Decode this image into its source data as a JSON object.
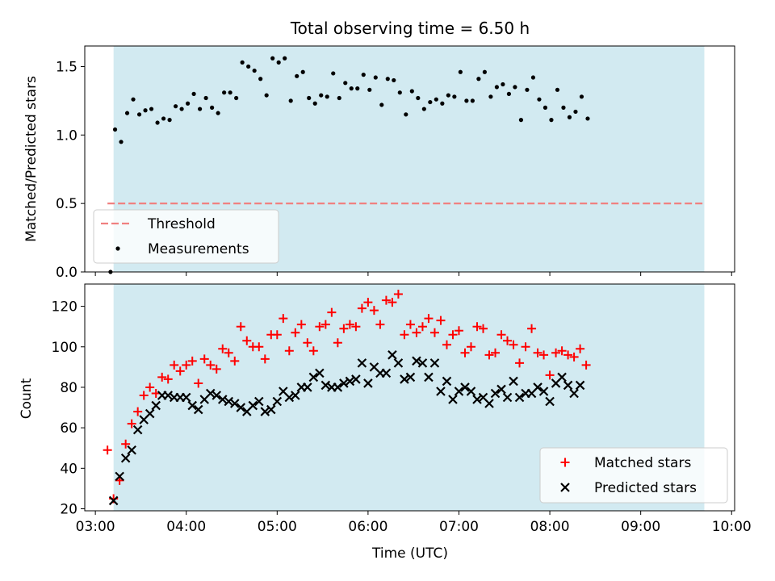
{
  "chart_data": [
    {
      "type": "scatter",
      "title": "Total observing time = 6.50 h",
      "xlabel": "",
      "ylabel": "Matched/Predicted stars",
      "xlim": [
        "02:53",
        "10:02"
      ],
      "ylim": [
        0,
        1.65
      ],
      "yticks": [
        "0.0",
        "0.5",
        "1.0",
        "1.5"
      ],
      "grid": false,
      "legend_position": "lower-left",
      "shaded_interval": [
        "03:12",
        "09:42"
      ],
      "colors": {
        "shade": "#add8e6",
        "measurements": "#000000",
        "threshold": "#f08080"
      },
      "threshold": {
        "name": "Threshold",
        "value": 0.5,
        "x_range": [
          "03:08",
          "09:42"
        ]
      },
      "series": [
        {
          "name": "Measurements",
          "points": [
            [
              "03:10",
              0.0
            ],
            [
              "03:13",
              1.04
            ],
            [
              "03:17",
              0.95
            ],
            [
              "03:21",
              1.16
            ],
            [
              "03:25",
              1.26
            ],
            [
              "03:29",
              1.15
            ],
            [
              "03:33",
              1.18
            ],
            [
              "03:37",
              1.19
            ],
            [
              "03:41",
              1.09
            ],
            [
              "03:45",
              1.12
            ],
            [
              "03:49",
              1.11
            ],
            [
              "03:53",
              1.21
            ],
            [
              "03:57",
              1.19
            ],
            [
              "04:01",
              1.23
            ],
            [
              "04:05",
              1.3
            ],
            [
              "04:09",
              1.19
            ],
            [
              "04:13",
              1.27
            ],
            [
              "04:17",
              1.2
            ],
            [
              "04:21",
              1.16
            ],
            [
              "04:25",
              1.31
            ],
            [
              "04:29",
              1.31
            ],
            [
              "04:33",
              1.27
            ],
            [
              "04:37",
              1.53
            ],
            [
              "04:41",
              1.5
            ],
            [
              "04:45",
              1.47
            ],
            [
              "04:49",
              1.41
            ],
            [
              "04:53",
              1.29
            ],
            [
              "04:57",
              1.56
            ],
            [
              "05:01",
              1.53
            ],
            [
              "05:05",
              1.56
            ],
            [
              "05:09",
              1.25
            ],
            [
              "05:13",
              1.43
            ],
            [
              "05:17",
              1.46
            ],
            [
              "05:21",
              1.27
            ],
            [
              "05:25",
              1.23
            ],
            [
              "05:29",
              1.29
            ],
            [
              "05:33",
              1.28
            ],
            [
              "05:37",
              1.45
            ],
            [
              "05:41",
              1.27
            ],
            [
              "05:45",
              1.38
            ],
            [
              "05:49",
              1.34
            ],
            [
              "05:53",
              1.34
            ],
            [
              "05:57",
              1.44
            ],
            [
              "06:01",
              1.33
            ],
            [
              "06:05",
              1.42
            ],
            [
              "06:09",
              1.22
            ],
            [
              "06:13",
              1.41
            ],
            [
              "06:17",
              1.4
            ],
            [
              "06:21",
              1.31
            ],
            [
              "06:25",
              1.15
            ],
            [
              "06:29",
              1.32
            ],
            [
              "06:33",
              1.27
            ],
            [
              "06:37",
              1.19
            ],
            [
              "06:41",
              1.24
            ],
            [
              "06:45",
              1.26
            ],
            [
              "06:49",
              1.23
            ],
            [
              "06:53",
              1.29
            ],
            [
              "06:57",
              1.28
            ],
            [
              "07:01",
              1.46
            ],
            [
              "07:05",
              1.25
            ],
            [
              "07:09",
              1.25
            ],
            [
              "07:13",
              1.41
            ],
            [
              "07:17",
              1.46
            ],
            [
              "07:21",
              1.28
            ],
            [
              "07:25",
              1.35
            ],
            [
              "07:29",
              1.37
            ],
            [
              "07:33",
              1.3
            ],
            [
              "07:37",
              1.35
            ],
            [
              "07:41",
              1.11
            ],
            [
              "07:45",
              1.33
            ],
            [
              "07:49",
              1.42
            ],
            [
              "07:53",
              1.26
            ],
            [
              "07:57",
              1.2
            ],
            [
              "08:01",
              1.11
            ],
            [
              "08:05",
              1.33
            ],
            [
              "08:09",
              1.2
            ],
            [
              "08:13",
              1.13
            ],
            [
              "08:17",
              1.17
            ],
            [
              "08:21",
              1.28
            ],
            [
              "08:25",
              1.12
            ]
          ]
        }
      ]
    },
    {
      "type": "scatter",
      "title": "",
      "xlabel": "Time (UTC)",
      "ylabel": "Count",
      "xlim": [
        "02:53",
        "10:02"
      ],
      "ylim": [
        19,
        131
      ],
      "xticks": [
        "03:00",
        "04:00",
        "05:00",
        "06:00",
        "07:00",
        "08:00",
        "09:00",
        "10:00"
      ],
      "yticks": [
        "20",
        "40",
        "60",
        "80",
        "100",
        "120"
      ],
      "grid": false,
      "legend_position": "lower-right",
      "shaded_interval": [
        "03:12",
        "09:42"
      ],
      "colors": {
        "shade": "#add8e6",
        "matched": "#ff0000",
        "predicted": "#000000"
      },
      "series": [
        {
          "name": "Matched stars",
          "marker": "plus",
          "points": [
            [
              "03:08",
              49
            ],
            [
              "03:12",
              25
            ],
            [
              "03:16",
              34
            ],
            [
              "03:20",
              52
            ],
            [
              "03:24",
              62
            ],
            [
              "03:28",
              68
            ],
            [
              "03:32",
              76
            ],
            [
              "03:36",
              80
            ],
            [
              "03:40",
              77
            ],
            [
              "03:44",
              85
            ],
            [
              "03:48",
              84
            ],
            [
              "03:52",
              91
            ],
            [
              "03:56",
              88
            ],
            [
              "04:00",
              91
            ],
            [
              "04:04",
              93
            ],
            [
              "04:08",
              82
            ],
            [
              "04:12",
              94
            ],
            [
              "04:16",
              91
            ],
            [
              "04:20",
              89
            ],
            [
              "04:24",
              99
            ],
            [
              "04:28",
              97
            ],
            [
              "04:32",
              93
            ],
            [
              "04:36",
              110
            ],
            [
              "04:40",
              103
            ],
            [
              "04:44",
              100
            ],
            [
              "04:48",
              100
            ],
            [
              "04:52",
              94
            ],
            [
              "04:56",
              106
            ],
            [
              "05:00",
              106
            ],
            [
              "05:04",
              114
            ],
            [
              "05:08",
              98
            ],
            [
              "05:12",
              107
            ],
            [
              "05:16",
              111
            ],
            [
              "05:20",
              102
            ],
            [
              "05:24",
              98
            ],
            [
              "05:28",
              110
            ],
            [
              "05:32",
              111
            ],
            [
              "05:36",
              117
            ],
            [
              "05:40",
              102
            ],
            [
              "05:44",
              109
            ],
            [
              "05:48",
              111
            ],
            [
              "05:52",
              110
            ],
            [
              "05:56",
              119
            ],
            [
              "06:00",
              122
            ],
            [
              "06:04",
              118
            ],
            [
              "06:08",
              111
            ],
            [
              "06:12",
              123
            ],
            [
              "06:16",
              122
            ],
            [
              "06:20",
              126
            ],
            [
              "06:24",
              106
            ],
            [
              "06:28",
              111
            ],
            [
              "06:32",
              107
            ],
            [
              "06:36",
              110
            ],
            [
              "06:40",
              114
            ],
            [
              "06:44",
              107
            ],
            [
              "06:48",
              113
            ],
            [
              "06:52",
              101
            ],
            [
              "06:56",
              106
            ],
            [
              "07:00",
              108
            ],
            [
              "07:04",
              97
            ],
            [
              "07:08",
              100
            ],
            [
              "07:12",
              110
            ],
            [
              "07:16",
              109
            ],
            [
              "07:20",
              96
            ],
            [
              "07:24",
              97
            ],
            [
              "07:28",
              106
            ],
            [
              "07:32",
              103
            ],
            [
              "07:36",
              101
            ],
            [
              "07:40",
              92
            ],
            [
              "07:44",
              100
            ],
            [
              "07:48",
              109
            ],
            [
              "07:52",
              97
            ],
            [
              "07:56",
              96
            ],
            [
              "08:00",
              86
            ],
            [
              "08:04",
              97
            ],
            [
              "08:08",
              98
            ],
            [
              "08:12",
              96
            ],
            [
              "08:16",
              95
            ],
            [
              "08:20",
              99
            ],
            [
              "08:24",
              91
            ]
          ]
        },
        {
          "name": "Predicted stars",
          "marker": "x",
          "points": [
            [
              "03:12",
              24
            ],
            [
              "03:16",
              36
            ],
            [
              "03:20",
              45
            ],
            [
              "03:24",
              49
            ],
            [
              "03:28",
              59
            ],
            [
              "03:32",
              64
            ],
            [
              "03:36",
              67
            ],
            [
              "03:40",
              71
            ],
            [
              "03:44",
              76
            ],
            [
              "03:48",
              76
            ],
            [
              "03:52",
              75
            ],
            [
              "03:56",
              75
            ],
            [
              "04:00",
              75
            ],
            [
              "04:04",
              71
            ],
            [
              "04:08",
              69
            ],
            [
              "04:12",
              74
            ],
            [
              "04:16",
              77
            ],
            [
              "04:20",
              76
            ],
            [
              "04:24",
              74
            ],
            [
              "04:28",
              73
            ],
            [
              "04:32",
              72
            ],
            [
              "04:36",
              70
            ],
            [
              "04:40",
              68
            ],
            [
              "04:44",
              71
            ],
            [
              "04:48",
              73
            ],
            [
              "04:52",
              68
            ],
            [
              "04:56",
              69
            ],
            [
              "05:00",
              73
            ],
            [
              "05:04",
              78
            ],
            [
              "05:08",
              75
            ],
            [
              "05:12",
              76
            ],
            [
              "05:16",
              80
            ],
            [
              "05:20",
              80
            ],
            [
              "05:24",
              85
            ],
            [
              "05:28",
              87
            ],
            [
              "05:32",
              81
            ],
            [
              "05:36",
              80
            ],
            [
              "05:40",
              80
            ],
            [
              "05:44",
              82
            ],
            [
              "05:48",
              83
            ],
            [
              "05:52",
              84
            ],
            [
              "05:56",
              92
            ],
            [
              "06:00",
              82
            ],
            [
              "06:04",
              90
            ],
            [
              "06:08",
              87
            ],
            [
              "06:12",
              87
            ],
            [
              "06:16",
              96
            ],
            [
              "06:20",
              92
            ],
            [
              "06:24",
              84
            ],
            [
              "06:28",
              85
            ],
            [
              "06:32",
              93
            ],
            [
              "06:36",
              92
            ],
            [
              "06:40",
              85
            ],
            [
              "06:44",
              92
            ],
            [
              "06:48",
              78
            ],
            [
              "06:52",
              83
            ],
            [
              "06:56",
              74
            ],
            [
              "07:00",
              78
            ],
            [
              "07:04",
              80
            ],
            [
              "07:08",
              78
            ],
            [
              "07:12",
              74
            ],
            [
              "07:16",
              75
            ],
            [
              "07:20",
              72
            ],
            [
              "07:24",
              77
            ],
            [
              "07:28",
              79
            ],
            [
              "07:32",
              75
            ],
            [
              "07:36",
              83
            ],
            [
              "07:40",
              75
            ],
            [
              "07:44",
              77
            ],
            [
              "07:48",
              77
            ],
            [
              "07:52",
              80
            ],
            [
              "07:56",
              78
            ],
            [
              "08:00",
              73
            ],
            [
              "08:04",
              82
            ],
            [
              "08:08",
              85
            ],
            [
              "08:12",
              81
            ],
            [
              "08:16",
              77
            ],
            [
              "08:20",
              81
            ]
          ]
        }
      ]
    }
  ]
}
